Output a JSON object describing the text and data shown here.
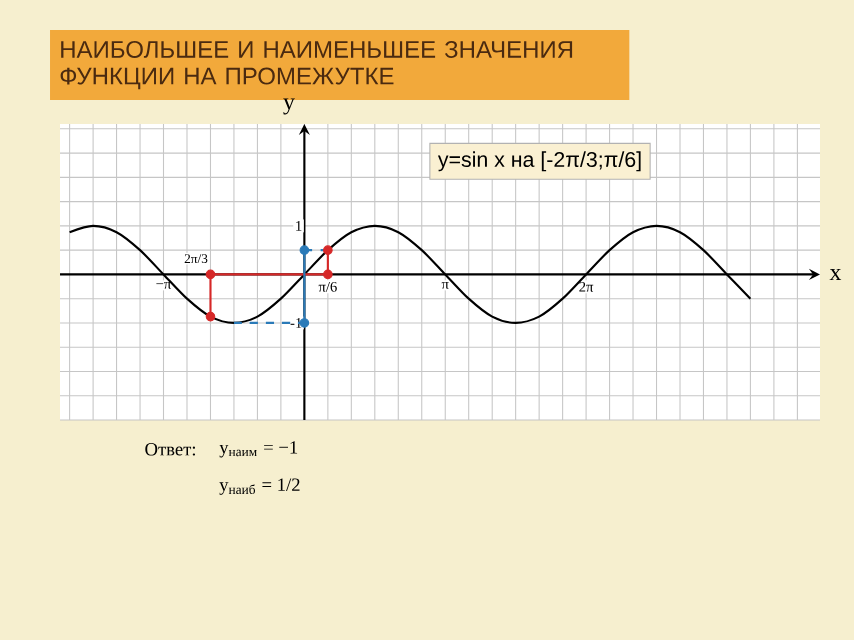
{
  "chart_data": {
    "type": "line",
    "title": "НАИБОЛЬШЕЕ И НАИМЕНЬШЕЕ ЗНАЧЕНИЯ ФУНКЦИИ НА ПРОМЕЖУТКЕ",
    "subtitle": "y=sin x   на [-2π/3;π/6]",
    "xlabel": "x",
    "ylabel": "y",
    "series": [
      {
        "color": "#000000",
        "marker": "none",
        "line_style": "solid",
        "x": [
          -5.236,
          -4.712,
          -4.189,
          -3.665,
          -3.142,
          -2.618,
          -2.094,
          -1.571,
          -1.047,
          -0.524,
          0,
          0.524,
          1.047,
          1.571,
          2.094,
          2.618,
          3.142,
          3.665,
          4.189,
          4.712,
          5.236,
          5.76,
          6.283,
          6.807,
          7.33,
          7.854,
          8.378,
          8.901,
          9.425,
          9.948
        ],
        "values": [
          0.87,
          1,
          0.87,
          0.5,
          0,
          -0.5,
          -0.87,
          -1,
          -0.87,
          -0.5,
          0,
          0.5,
          0.87,
          1,
          0.87,
          0.5,
          0,
          -0.5,
          -0.87,
          -1,
          -0.87,
          -0.5,
          0,
          0.5,
          0.87,
          1,
          0.87,
          0.5,
          0,
          -0.5
        ]
      },
      {
        "color": "#d62828",
        "marker": "none",
        "line_style": "solid",
        "x": [
          -2.094,
          -2.094,
          0.524,
          0.524
        ],
        "values": [
          -0.87,
          0,
          0,
          0.5
        ]
      },
      {
        "type": "scatter",
        "color": "#d62828",
        "marker": "circle",
        "x": [
          -2.094,
          -2.094,
          0.524,
          0.524
        ],
        "values": [
          -0.87,
          0,
          0,
          0.5
        ]
      },
      {
        "color": "#2a7ab8",
        "marker": "none",
        "line_style": "dashed",
        "x": [
          -1.571,
          0
        ],
        "values": [
          -1,
          -1
        ]
      },
      {
        "color": "#2a7ab8",
        "line_style": "solid",
        "x": [
          0,
          0
        ],
        "values": [
          -1,
          0.5
        ]
      },
      {
        "color": "#2a7ab8",
        "marker": "none",
        "line_style": "dashed",
        "x": [
          0,
          0.524
        ],
        "values": [
          0.5,
          0.5
        ]
      },
      {
        "type": "scatter",
        "color": "#2a7ab8",
        "marker": "circle",
        "x": [
          0,
          0
        ],
        "values": [
          -1,
          0.5
        ]
      }
    ],
    "xlim": [
      -5.45,
      11.5
    ],
    "ylim": [
      -3,
      3.1
    ],
    "xticks": [
      {
        "value": -5.236,
        "label": null
      },
      {
        "value": -4.712,
        "label": null
      },
      {
        "value": -4.189,
        "label": null
      },
      {
        "value": -3.665,
        "label": null
      },
      {
        "value": -3.142,
        "label": "−π"
      },
      {
        "value": -2.618,
        "label": null
      },
      {
        "value": -2.094,
        "label": null
      },
      {
        "value": -1.571,
        "label": null
      },
      {
        "value": -1.047,
        "label": null
      },
      {
        "value": -0.524,
        "label": null
      },
      {
        "value": 0,
        "label": null
      },
      {
        "value": 0.524,
        "label": "π/6"
      },
      {
        "value": 1.047,
        "label": null
      },
      {
        "value": 1.571,
        "label": null
      },
      {
        "value": 2.094,
        "label": null
      },
      {
        "value": 2.618,
        "label": null
      },
      {
        "value": 3.142,
        "label": "π"
      },
      {
        "value": 3.665,
        "label": null
      },
      {
        "value": 4.189,
        "label": null
      },
      {
        "value": 4.712,
        "label": null
      },
      {
        "value": 5.236,
        "label": null
      },
      {
        "value": 5.76,
        "label": null
      },
      {
        "value": 6.283,
        "label": "2π"
      },
      {
        "value": 6.807,
        "label": null
      },
      {
        "value": 7.33,
        "label": null
      },
      {
        "value": 7.854,
        "label": null
      },
      {
        "value": 8.378,
        "label": null
      },
      {
        "value": 8.901,
        "label": null
      },
      {
        "value": 9.425,
        "label": null
      },
      {
        "value": 9.948,
        "label": null
      },
      {
        "value": 10.472,
        "label": null
      },
      {
        "value": 10.996,
        "label": null
      }
    ],
    "yticks": [
      {
        "value": -3,
        "label": null
      },
      {
        "value": -2.5,
        "label": null
      },
      {
        "value": -2,
        "label": null
      },
      {
        "value": -1.5,
        "label": null
      },
      {
        "value": -1,
        "label": "-1"
      },
      {
        "value": -0.5,
        "label": null
      },
      {
        "value": 0.5,
        "label": null
      },
      {
        "value": 1,
        "label": "1"
      },
      {
        "value": 1.5,
        "label": null
      },
      {
        "value": 2,
        "label": null
      },
      {
        "value": 2.5,
        "label": null
      },
      {
        "value": 3,
        "label": null
      }
    ],
    "grid": true,
    "annotations": [
      "2π/3",
      "Ответ:",
      "y$_{наим}$ = −1",
      "y$_{наиб}$ = 1/2"
    ]
  }
}
